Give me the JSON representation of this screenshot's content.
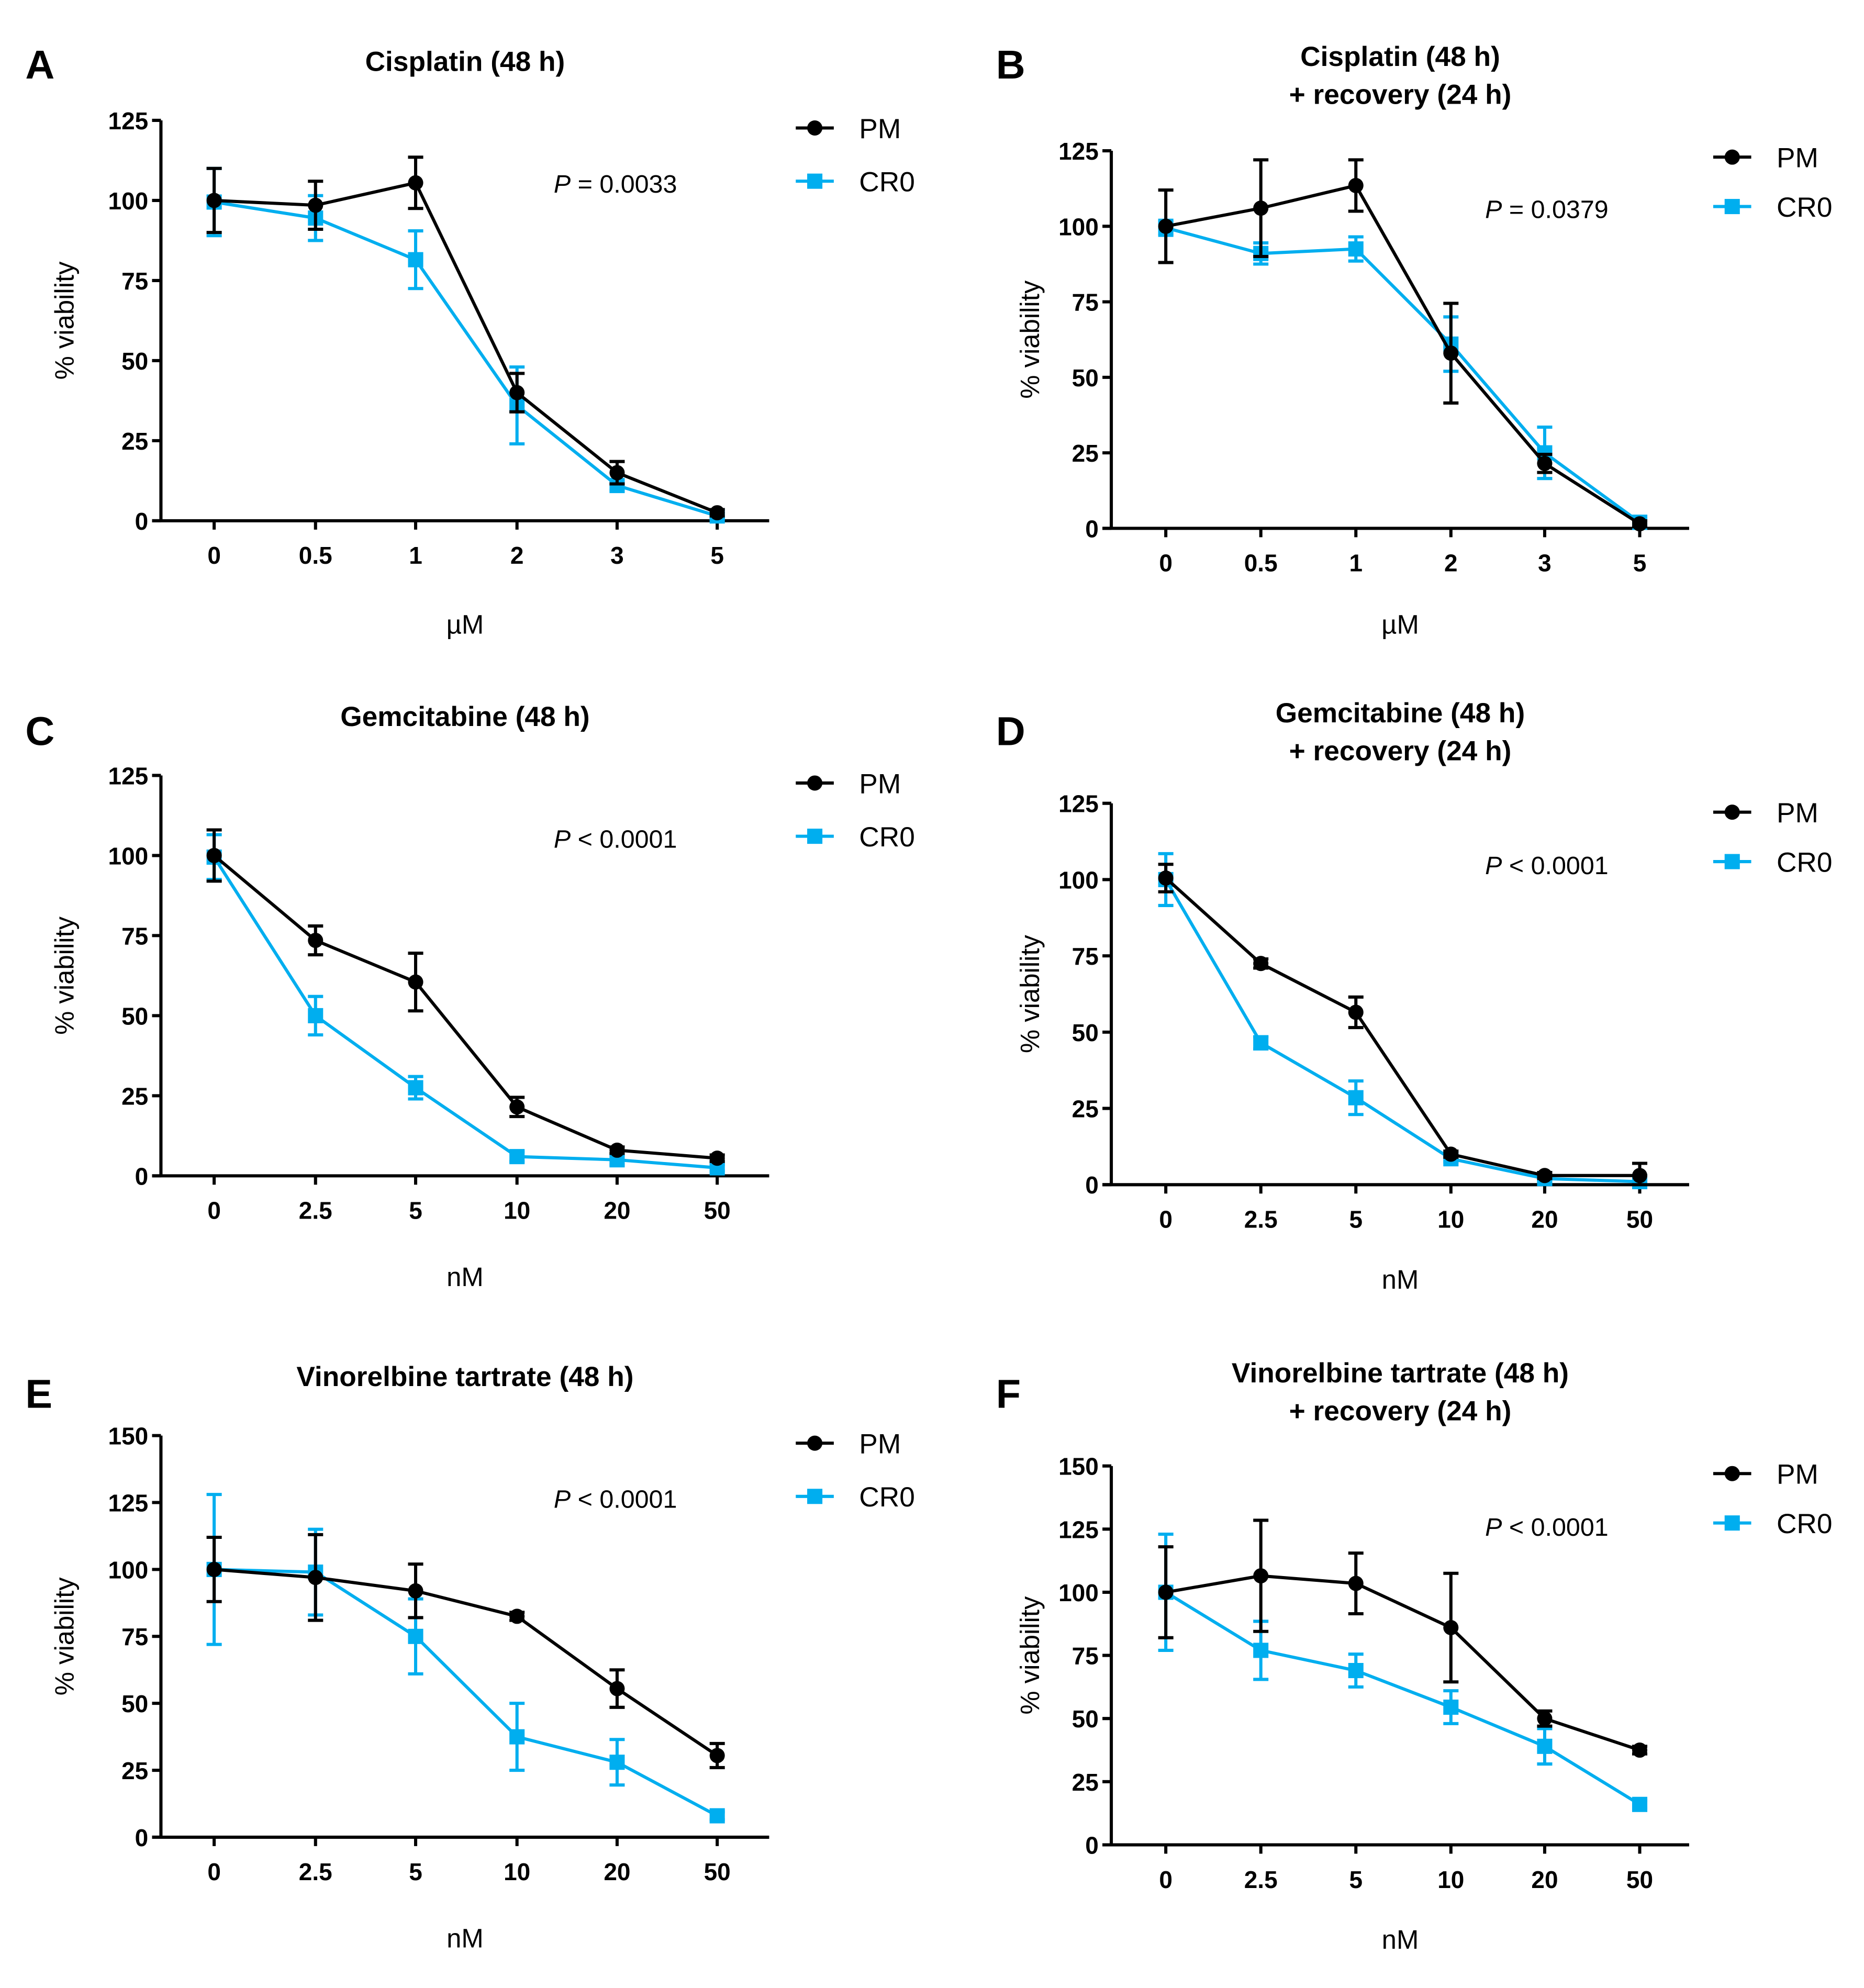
{
  "colors": {
    "pm": "#000000",
    "cr0": "#00AEEF"
  },
  "chart_data": [
    {
      "panel": "A",
      "type": "line",
      "title": [
        "Cisplatin (48 h)"
      ],
      "xlabel": "µM",
      "ylabel": "% viability",
      "categories": [
        "0",
        "0.5",
        "1",
        "2",
        "3",
        "5"
      ],
      "yticks": [
        0,
        25,
        50,
        75,
        100,
        125
      ],
      "ylim": [
        0,
        125
      ],
      "p_value": {
        "italic": "P",
        "rest": " = 0.0033"
      },
      "legend": [
        "PM",
        "CR0"
      ],
      "legend_position": "top-right",
      "grid": false,
      "series": [
        {
          "name": "PM",
          "marker": "circle",
          "values": [
            100,
            98.5,
            105.5,
            40,
            15,
            2.5
          ],
          "errors": [
            10,
            7.5,
            8,
            6,
            3.5,
            1
          ]
        },
        {
          "name": "CR0",
          "marker": "square",
          "values": [
            99.5,
            94.5,
            81.5,
            36,
            11,
            1.5
          ],
          "errors": [
            10.5,
            7,
            9,
            12,
            1.5,
            1
          ]
        }
      ]
    },
    {
      "panel": "B",
      "type": "line",
      "title": [
        "Cisplatin (48 h)",
        "+ recovery (24 h)"
      ],
      "xlabel": "µM",
      "ylabel": "% viability",
      "categories": [
        "0",
        "0.5",
        "1",
        "2",
        "3",
        "5"
      ],
      "yticks": [
        0,
        25,
        50,
        75,
        100,
        125
      ],
      "ylim": [
        0,
        125
      ],
      "p_value": {
        "italic": "P",
        "rest": " = 0.0379"
      },
      "legend": [
        "PM",
        "CR0"
      ],
      "legend_position": "top-right",
      "grid": false,
      "series": [
        {
          "name": "PM",
          "marker": "circle",
          "values": [
            100,
            106,
            113.5,
            58,
            21.5,
            1.5
          ],
          "errors": [
            12,
            16,
            8.5,
            16.5,
            3,
            1
          ]
        },
        {
          "name": "CR0",
          "marker": "square",
          "values": [
            99.5,
            91,
            92.5,
            61,
            25,
            2
          ],
          "errors": [
            2.5,
            3.5,
            4,
            9,
            8.5,
            2
          ]
        }
      ]
    },
    {
      "panel": "C",
      "type": "line",
      "title": [
        "Gemcitabine (48 h)"
      ],
      "xlabel": "nM",
      "ylabel": "% viability",
      "categories": [
        "0",
        "2.5",
        "5",
        "10",
        "20",
        "50"
      ],
      "yticks": [
        0,
        25,
        50,
        75,
        100,
        125
      ],
      "ylim": [
        0,
        125
      ],
      "p_value": {
        "italic": "P",
        "rest": " < 0.0001"
      },
      "legend": [
        "PM",
        "CR0"
      ],
      "legend_position": "top-right",
      "grid": false,
      "series": [
        {
          "name": "PM",
          "marker": "circle",
          "values": [
            100,
            73.5,
            60.5,
            21.5,
            8,
            5.5
          ],
          "errors": [
            8,
            4.5,
            9,
            3,
            1,
            1
          ]
        },
        {
          "name": "CR0",
          "marker": "square",
          "values": [
            99.5,
            50,
            27.5,
            6,
            5,
            2.5
          ],
          "errors": [
            7,
            6,
            3.5,
            1.5,
            1.5,
            1
          ]
        }
      ]
    },
    {
      "panel": "D",
      "type": "line",
      "title": [
        "Gemcitabine (48 h)",
        "+ recovery (24 h)"
      ],
      "xlabel": "nM",
      "ylabel": "% viability",
      "categories": [
        "0",
        "2.5",
        "5",
        "10",
        "20",
        "50"
      ],
      "yticks": [
        0,
        25,
        50,
        75,
        100,
        125
      ],
      "ylim": [
        0,
        125
      ],
      "p_value": {
        "italic": "P",
        "rest": " < 0.0001"
      },
      "legend": [
        "PM",
        "CR0"
      ],
      "legend_position": "top-right",
      "grid": false,
      "series": [
        {
          "name": "PM",
          "marker": "circle",
          "values": [
            100.5,
            72.5,
            56.5,
            10,
            3,
            3
          ],
          "errors": [
            4.5,
            1.5,
            5,
            1,
            1,
            4
          ]
        },
        {
          "name": "CR0",
          "marker": "square",
          "values": [
            100,
            46.5,
            28.5,
            8.5,
            2,
            1
          ],
          "errors": [
            8.5,
            2,
            5.5,
            1,
            1,
            1
          ]
        }
      ]
    },
    {
      "panel": "E",
      "type": "line",
      "title": [
        "Vinorelbine tartrate (48 h)"
      ],
      "xlabel": "nM",
      "ylabel": "% viability",
      "categories": [
        "0",
        "2.5",
        "5",
        "10",
        "20",
        "50"
      ],
      "yticks": [
        0,
        25,
        50,
        75,
        100,
        125,
        150
      ],
      "ylim": [
        0,
        150
      ],
      "p_value": {
        "italic": "P",
        "rest": " < 0.0001"
      },
      "legend": [
        "PM",
        "CR0"
      ],
      "legend_position": "top-right",
      "grid": false,
      "series": [
        {
          "name": "PM",
          "marker": "circle",
          "values": [
            100,
            97,
            92,
            82.5,
            55.5,
            30.5
          ],
          "errors": [
            12,
            16,
            10,
            1.5,
            7,
            4.5
          ]
        },
        {
          "name": "CR0",
          "marker": "square",
          "values": [
            100,
            99,
            75,
            37.5,
            28,
            8
          ],
          "errors": [
            28,
            16,
            14,
            12.5,
            8.5,
            1.5
          ]
        }
      ]
    },
    {
      "panel": "F",
      "type": "line",
      "title": [
        "Vinorelbine tartrate (48 h)",
        "+ recovery (24 h)"
      ],
      "xlabel": "nM",
      "ylabel": "% viability",
      "categories": [
        "0",
        "2.5",
        "5",
        "10",
        "20",
        "50"
      ],
      "yticks": [
        0,
        25,
        50,
        75,
        100,
        125,
        150
      ],
      "ylim": [
        0,
        150
      ],
      "p_value": {
        "italic": "P",
        "rest": " < 0.0001"
      },
      "legend": [
        "PM",
        "CR0"
      ],
      "legend_position": "top-right",
      "grid": false,
      "series": [
        {
          "name": "PM",
          "marker": "circle",
          "values": [
            100,
            106.5,
            103.5,
            86,
            50,
            37.5
          ],
          "errors": [
            18,
            22,
            12,
            21.5,
            3,
            1.5
          ]
        },
        {
          "name": "CR0",
          "marker": "square",
          "values": [
            100,
            77,
            69,
            54.5,
            39,
            16
          ],
          "errors": [
            23,
            11.5,
            6.5,
            6.5,
            7,
            1.5
          ]
        }
      ]
    }
  ]
}
